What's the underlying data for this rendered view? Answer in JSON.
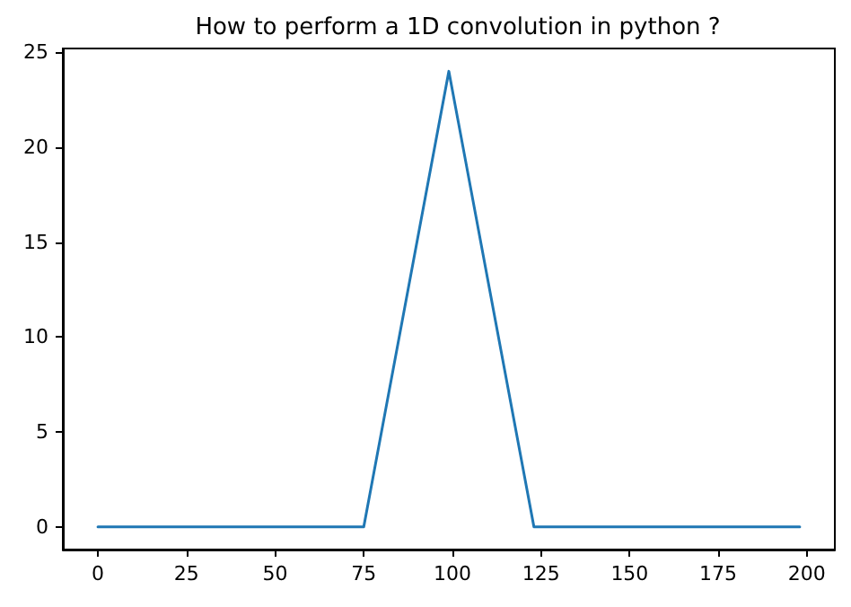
{
  "chart_data": {
    "type": "line",
    "title": "How to perform a 1D convolution in python ?",
    "x": [
      0,
      75,
      99,
      123,
      198
    ],
    "series": [
      {
        "color": "#1f77b4",
        "values": [
          0,
          0,
          24,
          0,
          0
        ]
      }
    ],
    "xlim": [
      -9.9,
      207.9
    ],
    "xticks": [
      0,
      25,
      50,
      75,
      100,
      125,
      150,
      175,
      200
    ],
    "ylim": [
      -1.2,
      25.2
    ],
    "yticks": [
      0,
      5,
      10,
      15,
      20,
      25
    ],
    "marker": "none",
    "line_style": "solid"
  }
}
